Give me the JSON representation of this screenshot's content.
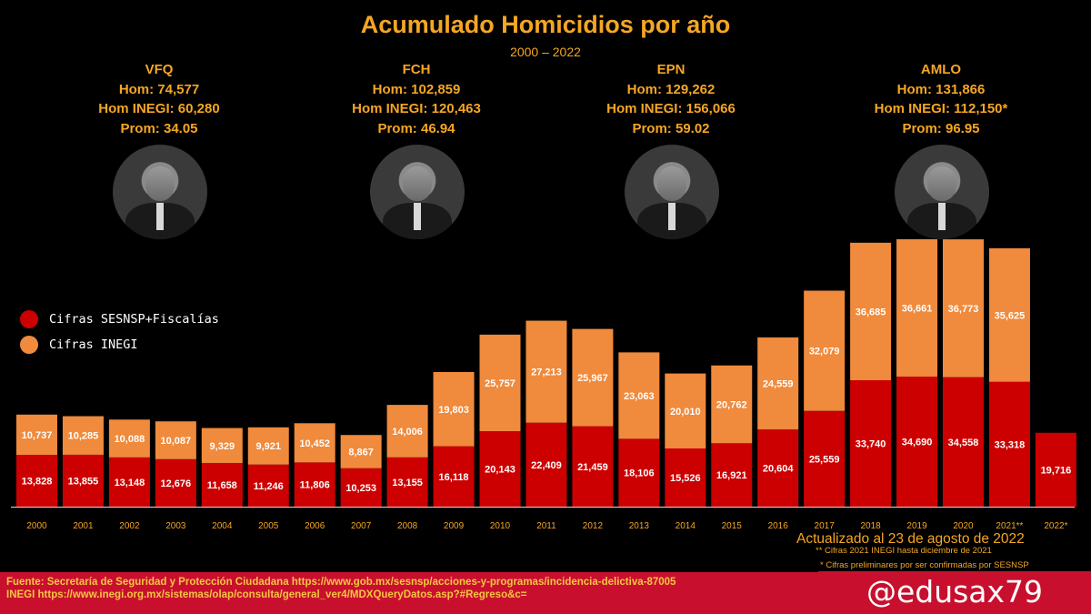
{
  "title": "Acumulado Homicidios por año",
  "subtitle": "2000 – 2022",
  "presidents": [
    {
      "name": "VFQ",
      "hom": "Hom: 74,577",
      "inegi": "Hom INEGI: 60,280",
      "prom": "Prom: 34.05"
    },
    {
      "name": "FCH",
      "hom": "Hom: 102,859",
      "inegi": "Hom INEGI: 120,463",
      "prom": "Prom: 46.94"
    },
    {
      "name": "EPN",
      "hom": "Hom: 129,262",
      "inegi": "Hom INEGI: 156,066",
      "prom": "Prom: 59.02"
    },
    {
      "name": "AMLO",
      "hom": "Hom: 131,866",
      "inegi": "Hom INEGI: 112,150*",
      "prom": "Prom: 96.95"
    }
  ],
  "legend": {
    "sesnsp": "Cifras SESNSP+Fiscalías",
    "inegi": "Cifras INEGI"
  },
  "colors": {
    "sesnsp": "#cc0000",
    "inegi": "#f08a3c",
    "accent": "#f5a623",
    "footer": "#c8102e"
  },
  "chart_data": {
    "type": "bar",
    "stacked": true,
    "categories": [
      "2000",
      "2001",
      "2002",
      "2003",
      "2004",
      "2005",
      "2006",
      "2007",
      "2008",
      "2009",
      "2010",
      "2011",
      "2012",
      "2013",
      "2014",
      "2015",
      "2016",
      "2017",
      "2018",
      "2019",
      "2020",
      "2021**",
      "2022*"
    ],
    "series": [
      {
        "name": "Cifras SESNSP+Fiscalías",
        "values": [
          13828,
          13855,
          13148,
          12676,
          11658,
          11246,
          11806,
          10253,
          13155,
          16118,
          20143,
          22409,
          21459,
          18106,
          15526,
          16921,
          20604,
          25559,
          33740,
          34690,
          34558,
          33318,
          19716
        ]
      },
      {
        "name": "Cifras INEGI",
        "values": [
          10737,
          10285,
          10088,
          10087,
          9329,
          9921,
          10452,
          8867,
          14006,
          19803,
          25757,
          27213,
          25967,
          23063,
          20010,
          20762,
          24559,
          32079,
          36685,
          36661,
          36773,
          35625,
          null
        ]
      }
    ],
    "labels_sesnsp": [
      "13,828",
      "13,855",
      "13,148",
      "12,676",
      "11,658",
      "11,246",
      "11,806",
      "10,253",
      "13,155",
      "16,118",
      "20,143",
      "22,409",
      "21,459",
      "18,106",
      "15,526",
      "16,921",
      "20,604",
      "25,559",
      "33,740",
      "34,690",
      "34,558",
      "33,318",
      "19,716"
    ],
    "labels_inegi": [
      "10,737",
      "10,285",
      "10,088",
      "10,087",
      "9,329",
      "9,921",
      "10,452",
      "8,867",
      "14,006",
      "19,803",
      "25,757",
      "27,213",
      "25,967",
      "23,063",
      "20,010",
      "20,762",
      "24,559",
      "32,079",
      "36,685",
      "36,661",
      "36,773",
      "35,625",
      ""
    ],
    "legend_position": "left",
    "grid": false
  },
  "notes": {
    "updated": "Actualizado al 23 de agosto de 2022",
    "note1": "** Cifras 2021 INEGI hasta diciembre de 2021",
    "note2": "* Cifras preliminares por ser confirmadas por SESNSP"
  },
  "footer": {
    "line1": "Fuente: Secretaría de Seguridad y Protección Ciudadana https://www.gob.mx/sesnsp/acciones-y-programas/incidencia-delictiva-87005",
    "line2": "INEGI https://www.inegi.org.mx/sistemas/olap/consulta/general_ver4/MDXQueryDatos.asp?#Regreso&c="
  },
  "handle": "@edusax79"
}
